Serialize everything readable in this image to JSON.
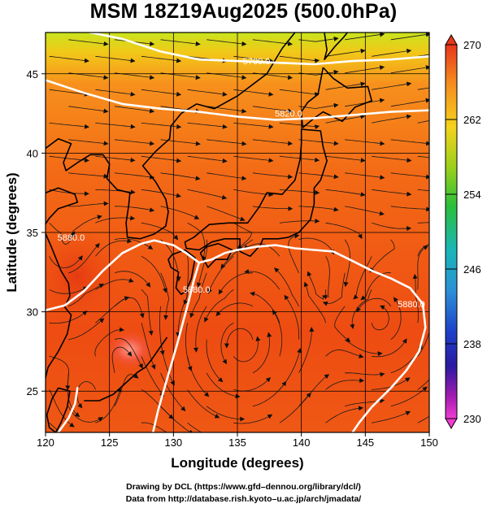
{
  "title": "MSM 18Z19Aug2025 (500.0hPa)",
  "map": {
    "x_axis": {
      "label": "Longitude (degrees)",
      "range": [
        120,
        150
      ],
      "ticks": [
        "120",
        "125",
        "130",
        "135",
        "140",
        "145",
        "150"
      ]
    },
    "y_axis": {
      "label": "Latitude  (degrees)",
      "range": [
        22.4,
        47.6
      ],
      "ticks": [
        "25",
        "30",
        "35",
        "40",
        "45"
      ]
    },
    "contour_labels": [
      {
        "text": "5700.0",
        "lon": 136.5,
        "lat": 45.6
      },
      {
        "text": "5820.0",
        "lon": 139.0,
        "lat": 42.3
      },
      {
        "text": "5880.0",
        "lon": 122.0,
        "lat": 34.5
      },
      {
        "text": "5880.0",
        "lon": 131.8,
        "lat": 31.2
      },
      {
        "text": "5880.0",
        "lon": 148.6,
        "lat": 30.3
      }
    ],
    "contours": [
      {
        "level": "5700",
        "points": [
          [
            123.5,
            47.6
          ],
          [
            126,
            47.2
          ],
          [
            129,
            46.4
          ],
          [
            132,
            45.9
          ],
          [
            135,
            45.8
          ],
          [
            138,
            45.7
          ],
          [
            141,
            45.6
          ],
          [
            144,
            45.8
          ],
          [
            147,
            45.9
          ],
          [
            150,
            46.1
          ]
        ]
      },
      {
        "level": "5820",
        "points": [
          [
            120,
            44.6
          ],
          [
            123,
            43.8
          ],
          [
            126,
            43.1
          ],
          [
            129,
            42.8
          ],
          [
            132,
            42.6
          ],
          [
            135,
            42.3
          ],
          [
            138,
            42.1
          ],
          [
            141,
            42.2
          ],
          [
            144,
            42.4
          ],
          [
            147,
            42.6
          ],
          [
            150,
            42.7
          ]
        ]
      },
      {
        "level": "5880",
        "points": [
          [
            120,
            30.1
          ],
          [
            121.5,
            30.4
          ],
          [
            123,
            31.3
          ],
          [
            124.5,
            32.6
          ],
          [
            126,
            33.7
          ],
          [
            127.5,
            34.3
          ],
          [
            128.5,
            34.5
          ],
          [
            130,
            34.2
          ],
          [
            131,
            33.7
          ],
          [
            132,
            33.1
          ],
          [
            133,
            33.3
          ],
          [
            134,
            33.7
          ],
          [
            135,
            33.9
          ],
          [
            136.5,
            34.1
          ],
          [
            138,
            34.2
          ],
          [
            139.5,
            34.0
          ],
          [
            141,
            33.9
          ],
          [
            142.5,
            33.8
          ],
          [
            144,
            33.2
          ],
          [
            145.5,
            32.6
          ],
          [
            147,
            32.1
          ],
          [
            148.5,
            31.5
          ],
          [
            149.5,
            30.5
          ],
          [
            149.7,
            29.0
          ],
          [
            149.2,
            27.5
          ],
          [
            148.2,
            26.3
          ],
          [
            147,
            25.2
          ],
          [
            145.5,
            24.0
          ],
          [
            144.5,
            23.0
          ],
          [
            144,
            22.4
          ]
        ]
      },
      {
        "level": "5880",
        "points": [
          [
            132,
            33.1
          ],
          [
            131.6,
            32.0
          ],
          [
            131.2,
            30.7
          ],
          [
            130.8,
            29.5
          ],
          [
            130.3,
            28.0
          ],
          [
            129.8,
            26.6
          ],
          [
            129.3,
            25.2
          ],
          [
            128.8,
            23.8
          ],
          [
            128.4,
            22.4
          ]
        ]
      },
      {
        "level": "5880",
        "points": [
          [
            121,
            22.4
          ],
          [
            121.8,
            23.3
          ],
          [
            122.3,
            24.2
          ],
          [
            122.5,
            25.2
          ]
        ]
      }
    ],
    "coastlines": [
      {
        "name": "china-coast",
        "points": [
          [
            120,
            37.5
          ],
          [
            121,
            37.8
          ],
          [
            122.3,
            37.4
          ],
          [
            122.5,
            36.9
          ],
          [
            121,
            36.5
          ],
          [
            120.3,
            35.9
          ],
          [
            119.8,
            35.3
          ],
          [
            120.5,
            34.0
          ],
          [
            121.2,
            32.6
          ],
          [
            121.8,
            31.8
          ],
          [
            121.9,
            31.0
          ],
          [
            121.5,
            30.3
          ],
          [
            122.0,
            29.8
          ],
          [
            121.7,
            28.6
          ],
          [
            121.0,
            27.5
          ],
          [
            120.2,
            26.5
          ],
          [
            119.9,
            25.5
          ],
          [
            120,
            25.0
          ]
        ]
      },
      {
        "name": "china-liaodong",
        "points": [
          [
            120,
            40.3
          ],
          [
            121,
            40.9
          ],
          [
            122,
            40.6
          ],
          [
            121.4,
            39.4
          ],
          [
            121.6,
            38.9
          ],
          [
            122.5,
            39.4
          ],
          [
            123.5,
            39.9
          ],
          [
            124.5,
            39.9
          ]
        ]
      },
      {
        "name": "taiwan",
        "points": [
          [
            121.0,
            25.2
          ],
          [
            121.9,
            25.0
          ],
          [
            121.7,
            24.0
          ],
          [
            121.2,
            23.0
          ],
          [
            120.8,
            22.4
          ],
          [
            120.3,
            22.7
          ],
          [
            120.1,
            23.5
          ],
          [
            120.5,
            24.5
          ],
          [
            121.0,
            25.2
          ]
        ]
      },
      {
        "name": "korea",
        "points": [
          [
            124.5,
            39.9
          ],
          [
            125.0,
            39.3
          ],
          [
            124.8,
            38.4
          ],
          [
            125.6,
            37.7
          ],
          [
            126.6,
            37.5
          ],
          [
            126.5,
            36.7
          ],
          [
            126.3,
            35.6
          ],
          [
            126.4,
            34.7
          ],
          [
            127.4,
            34.6
          ],
          [
            128.5,
            34.9
          ],
          [
            129.4,
            35.4
          ],
          [
            129.6,
            36.3
          ],
          [
            129.4,
            37.1
          ],
          [
            128.6,
            38.2
          ],
          [
            127.6,
            39.2
          ],
          [
            128.6,
            40.1
          ],
          [
            129.7,
            40.9
          ],
          [
            129.8,
            41.7
          ],
          [
            130.6,
            42.5
          ]
        ]
      },
      {
        "name": "russia-coast",
        "points": [
          [
            130.6,
            42.5
          ],
          [
            131.8,
            43.1
          ],
          [
            133.2,
            42.8
          ],
          [
            135.0,
            43.6
          ],
          [
            137.3,
            45.0
          ],
          [
            138.5,
            46.6
          ],
          [
            139.5,
            47.6
          ]
        ]
      },
      {
        "name": "sakhalin",
        "points": [
          [
            141.8,
            47.6
          ],
          [
            142.0,
            46.5
          ],
          [
            141.8,
            45.9
          ],
          [
            142.6,
            46.7
          ],
          [
            143.3,
            47.3
          ],
          [
            143.6,
            47.6
          ]
        ]
      },
      {
        "name": "hokkaido",
        "points": [
          [
            141.7,
            45.4
          ],
          [
            142.5,
            44.7
          ],
          [
            143.6,
            44.1
          ],
          [
            145.2,
            44.2
          ],
          [
            145.5,
            43.3
          ],
          [
            144.2,
            42.9
          ],
          [
            143.2,
            42.0
          ],
          [
            141.7,
            42.6
          ],
          [
            141.0,
            42.2
          ],
          [
            140.1,
            41.6
          ],
          [
            140.0,
            42.6
          ],
          [
            140.5,
            43.2
          ],
          [
            141.3,
            43.7
          ],
          [
            141.7,
            45.4
          ]
        ]
      },
      {
        "name": "honshu",
        "points": [
          [
            140.0,
            41.5
          ],
          [
            141.5,
            41.4
          ],
          [
            141.7,
            40.4
          ],
          [
            142.0,
            39.5
          ],
          [
            141.5,
            38.3
          ],
          [
            141.0,
            37.8
          ],
          [
            141.0,
            36.8
          ],
          [
            140.7,
            35.8
          ],
          [
            139.8,
            35.0
          ],
          [
            139.0,
            34.7
          ],
          [
            138.2,
            34.6
          ],
          [
            137.0,
            34.6
          ],
          [
            136.8,
            34.2
          ],
          [
            136.0,
            33.5
          ],
          [
            135.2,
            33.8
          ],
          [
            135.2,
            34.6
          ],
          [
            134.0,
            34.6
          ],
          [
            133.0,
            34.4
          ],
          [
            132.0,
            33.9
          ],
          [
            131.0,
            34.0
          ],
          [
            130.9,
            34.4
          ],
          [
            131.6,
            34.7
          ],
          [
            132.8,
            35.5
          ],
          [
            134.3,
            35.6
          ],
          [
            135.8,
            35.6
          ],
          [
            136.7,
            36.6
          ],
          [
            137.3,
            37.5
          ],
          [
            138.5,
            37.4
          ],
          [
            139.5,
            38.3
          ],
          [
            139.9,
            39.6
          ],
          [
            140.0,
            40.6
          ],
          [
            140.0,
            41.5
          ]
        ]
      },
      {
        "name": "shikoku",
        "points": [
          [
            132.1,
            33.7
          ],
          [
            132.7,
            32.8
          ],
          [
            133.3,
            33.3
          ],
          [
            134.2,
            33.3
          ],
          [
            134.6,
            33.9
          ],
          [
            133.5,
            34.3
          ],
          [
            132.6,
            34.1
          ],
          [
            132.1,
            33.7
          ]
        ]
      },
      {
        "name": "kyushu",
        "points": [
          [
            129.9,
            33.6
          ],
          [
            130.9,
            33.9
          ],
          [
            131.7,
            33.4
          ],
          [
            131.4,
            32.1
          ],
          [
            131.0,
            31.3
          ],
          [
            130.6,
            31.1
          ],
          [
            130.2,
            31.5
          ],
          [
            130.4,
            32.5
          ],
          [
            129.8,
            32.8
          ],
          [
            129.6,
            33.3
          ],
          [
            129.9,
            33.6
          ]
        ]
      },
      {
        "name": "ryukyu",
        "points": [
          [
            129.5,
            28.4
          ],
          [
            128.3,
            27.0
          ],
          [
            127.8,
            26.5
          ],
          [
            127.2,
            26.2
          ],
          [
            125.3,
            24.8
          ],
          [
            124.2,
            24.4
          ],
          [
            123.0,
            24.4
          ]
        ]
      }
    ]
  },
  "colorbar": {
    "ticks": [
      "270",
      "262",
      "254",
      "246",
      "238",
      "230"
    ],
    "range": [
      230,
      270
    ],
    "colors_top_to_bottom": [
      "#e8361b",
      "#f58a1f",
      "#f4d21c",
      "#9ad01b",
      "#2bbf3a",
      "#19b6b8",
      "#2c8fd6",
      "#1d3fc8",
      "#2b1aa0",
      "#a21bb0",
      "#f03cd2"
    ]
  },
  "credits": {
    "line1": "Drawing by DCL (https://www.gfd–dennou.org/library/dcl/)",
    "line2": "Data from http://database.rish.kyoto–u.ac.jp/arch/jmadata/"
  }
}
